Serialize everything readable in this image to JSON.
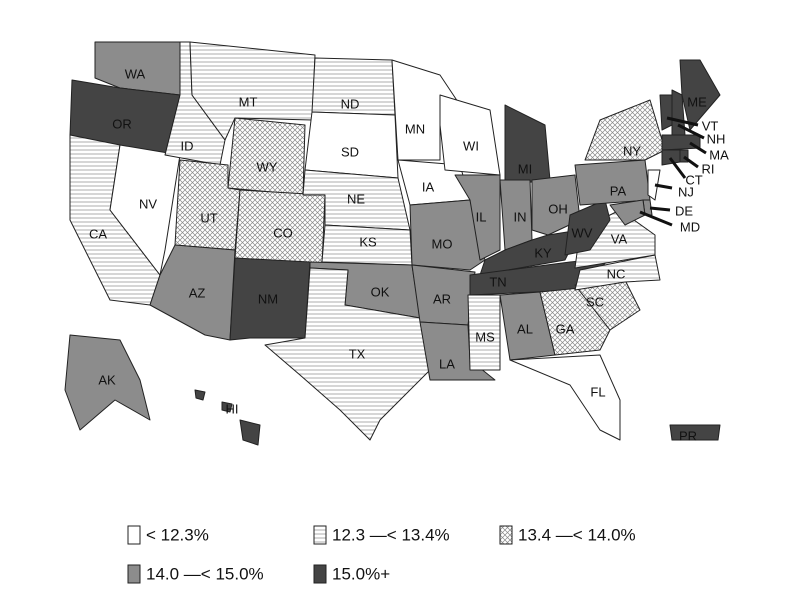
{
  "states": [
    {
      "label": "WA",
      "class": 3
    },
    {
      "label": "OR",
      "class": 4
    },
    {
      "label": "CA",
      "class": 1
    },
    {
      "label": "NV",
      "class": 0
    },
    {
      "label": "ID",
      "class": 1
    },
    {
      "label": "MT",
      "class": 1
    },
    {
      "label": "WY",
      "class": 2
    },
    {
      "label": "UT",
      "class": 2
    },
    {
      "label": "CO",
      "class": 2
    },
    {
      "label": "AZ",
      "class": 3
    },
    {
      "label": "NM",
      "class": 4
    },
    {
      "label": "ND",
      "class": 1
    },
    {
      "label": "SD",
      "class": 0
    },
    {
      "label": "NE",
      "class": 1
    },
    {
      "label": "KS",
      "class": 1
    },
    {
      "label": "OK",
      "class": 3
    },
    {
      "label": "TX",
      "class": 1
    },
    {
      "label": "MN",
      "class": 0
    },
    {
      "label": "IA",
      "class": 0
    },
    {
      "label": "MO",
      "class": 3
    },
    {
      "label": "AR",
      "class": 3
    },
    {
      "label": "LA",
      "class": 3
    },
    {
      "label": "WI",
      "class": 0
    },
    {
      "label": "IL",
      "class": 3
    },
    {
      "label": "MI",
      "class": 4
    },
    {
      "label": "IN",
      "class": 3
    },
    {
      "label": "OH",
      "class": 3
    },
    {
      "label": "KY",
      "class": 4
    },
    {
      "label": "TN",
      "class": 4
    },
    {
      "label": "MS",
      "class": 1
    },
    {
      "label": "AL",
      "class": 3
    },
    {
      "label": "GA",
      "class": 2
    },
    {
      "label": "FL",
      "class": 0
    },
    {
      "label": "SC",
      "class": 2
    },
    {
      "label": "NC",
      "class": 1
    },
    {
      "label": "VA",
      "class": 1
    },
    {
      "label": "WV",
      "class": 4
    },
    {
      "label": "PA",
      "class": 3
    },
    {
      "label": "NY",
      "class": 2
    },
    {
      "label": "NJ",
      "class": 0
    },
    {
      "label": "DE",
      "class": 3
    },
    {
      "label": "MD",
      "class": 3
    },
    {
      "label": "VT",
      "class": 4
    },
    {
      "label": "NH",
      "class": 4
    },
    {
      "label": "ME",
      "class": 4
    },
    {
      "label": "MA",
      "class": 4
    },
    {
      "label": "CT",
      "class": 4
    },
    {
      "label": "RI",
      "class": 4
    },
    {
      "label": "AK",
      "class": 3
    },
    {
      "label": "HI",
      "class": 4
    },
    {
      "label": "PR",
      "class": 4
    }
  ],
  "legend": [
    "< 12.3%",
    "12.3 —< 13.4%",
    "13.4 —< 14.0%",
    "14.0 —< 15.0%",
    "15.0%+"
  ]
}
